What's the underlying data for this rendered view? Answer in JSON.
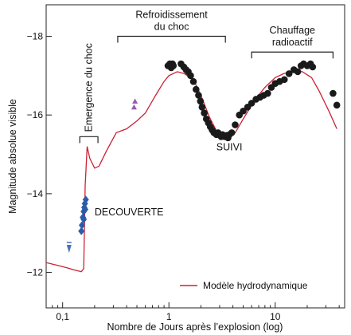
{
  "chart_data": {
    "type": "scatter",
    "xlabel": "Nombre de Jours après l’explosion (log)",
    "ylabel": "Magnitude absolue visible",
    "x_scale": "log",
    "xlim": [
      0.07,
      45
    ],
    "ylim": [
      -11.1,
      -18.8
    ],
    "y_inverted": true,
    "x_ticks": [
      {
        "value": 0.1,
        "label": "0,1"
      },
      {
        "value": 1,
        "label": "1"
      },
      {
        "value": 10,
        "label": "10"
      }
    ],
    "y_ticks": [
      {
        "value": -12,
        "label": "−12"
      },
      {
        "value": -14,
        "label": "−14"
      },
      {
        "value": -16,
        "label": "−16"
      },
      {
        "value": -18,
        "label": "−18"
      }
    ],
    "annotations": [
      {
        "text": "DECOUVERTE",
        "x": 0.2,
        "y": -13.45
      },
      {
        "text": "SUIVI",
        "x": 3.7,
        "y": -15.1
      }
    ],
    "phases": [
      {
        "lines": [
          "Emergence du choc"
        ],
        "x_start": 0.145,
        "x_end": 0.215,
        "y": -15.45
      },
      {
        "lines": [
          "Refroidissement",
          "du choc"
        ],
        "x_start": 0.33,
        "x_end": 3.4,
        "y": -18.0
      },
      {
        "lines": [
          "Chauffage",
          "radioactif"
        ],
        "x_start": 6.0,
        "x_end": 35.0,
        "y": -17.6
      }
    ],
    "legend": {
      "position": "bottom-right",
      "label": "Modèle hydrodynamique",
      "color": "#cc2233"
    },
    "colors": {
      "model": "#cc2233",
      "discovery": "#2a5caa",
      "followup": "#1a1a1a",
      "triangles": "#9b59b6",
      "limit": "#4a6fb5"
    },
    "series": [
      {
        "kind": "line",
        "name": "Modèle hydrodynamique",
        "points": [
          [
            0.07,
            -12.25
          ],
          [
            0.09,
            -12.18
          ],
          [
            0.11,
            -12.12
          ],
          [
            0.13,
            -12.06
          ],
          [
            0.15,
            -12.02
          ],
          [
            0.158,
            -12.1
          ],
          [
            0.163,
            -14.2
          ],
          [
            0.17,
            -15.2
          ],
          [
            0.18,
            -14.9
          ],
          [
            0.2,
            -14.65
          ],
          [
            0.22,
            -14.7
          ],
          [
            0.26,
            -15.1
          ],
          [
            0.32,
            -15.55
          ],
          [
            0.4,
            -15.65
          ],
          [
            0.5,
            -15.85
          ],
          [
            0.6,
            -16.05
          ],
          [
            0.75,
            -16.5
          ],
          [
            0.9,
            -16.85
          ],
          [
            1.0,
            -17.0
          ],
          [
            1.2,
            -17.1
          ],
          [
            1.4,
            -17.05
          ],
          [
            1.7,
            -16.9
          ],
          [
            2.0,
            -16.5
          ],
          [
            2.4,
            -15.95
          ],
          [
            2.8,
            -15.6
          ],
          [
            3.2,
            -15.45
          ],
          [
            3.6,
            -15.42
          ],
          [
            4.2,
            -15.55
          ],
          [
            5.0,
            -15.9
          ],
          [
            6.5,
            -16.4
          ],
          [
            8.0,
            -16.7
          ],
          [
            10.0,
            -16.95
          ],
          [
            12.0,
            -17.05
          ],
          [
            15.0,
            -17.12
          ],
          [
            18.0,
            -17.1
          ],
          [
            22.0,
            -16.95
          ],
          [
            26.0,
            -16.6
          ],
          [
            32.0,
            -16.1
          ],
          [
            38.0,
            -15.65
          ]
        ]
      },
      {
        "kind": "markers",
        "name": "",
        "marker": "diamond",
        "points": [
          [
            0.15,
            -13.05
          ],
          [
            0.152,
            -13.2
          ],
          [
            0.155,
            -13.4
          ],
          [
            0.158,
            -13.55
          ],
          [
            0.16,
            -13.65
          ],
          [
            0.162,
            -13.75
          ],
          [
            0.165,
            -13.85
          ],
          [
            0.163,
            -13.6
          ],
          [
            0.158,
            -13.35
          ]
        ]
      },
      {
        "kind": "markers",
        "name": "",
        "marker": "triangle",
        "points": [
          [
            0.47,
            -16.2
          ],
          [
            0.48,
            -16.35
          ]
        ]
      },
      {
        "kind": "markers",
        "name": "",
        "marker": "limit",
        "points": [
          [
            0.115,
            -12.6
          ]
        ]
      },
      {
        "kind": "markers",
        "name": "",
        "marker": "circle",
        "points": [
          [
            0.98,
            -17.25
          ],
          [
            1.02,
            -17.3
          ],
          [
            1.05,
            -17.2
          ],
          [
            1.08,
            -17.3
          ],
          [
            1.1,
            -17.25
          ],
          [
            1.3,
            -17.3
          ],
          [
            1.38,
            -17.22
          ],
          [
            1.45,
            -17.15
          ],
          [
            1.52,
            -17.1
          ],
          [
            1.6,
            -17.0
          ],
          [
            1.7,
            -16.85
          ],
          [
            1.8,
            -16.65
          ],
          [
            1.9,
            -16.5
          ],
          [
            1.98,
            -16.35
          ],
          [
            2.05,
            -16.2
          ],
          [
            2.15,
            -16.05
          ],
          [
            2.25,
            -15.9
          ],
          [
            2.35,
            -15.8
          ],
          [
            2.45,
            -15.7
          ],
          [
            2.55,
            -15.62
          ],
          [
            2.65,
            -15.55
          ],
          [
            2.8,
            -15.5
          ],
          [
            2.9,
            -15.55
          ],
          [
            3.0,
            -15.5
          ],
          [
            3.1,
            -15.45
          ],
          [
            3.2,
            -15.5
          ],
          [
            3.35,
            -15.45
          ],
          [
            3.5,
            -15.48
          ],
          [
            3.6,
            -15.42
          ],
          [
            3.7,
            -15.5
          ],
          [
            3.9,
            -15.55
          ],
          [
            4.2,
            -15.75
          ],
          [
            4.6,
            -16.0
          ],
          [
            5.0,
            -16.1
          ],
          [
            5.5,
            -16.2
          ],
          [
            6.0,
            -16.3
          ],
          [
            6.6,
            -16.4
          ],
          [
            7.2,
            -16.45
          ],
          [
            7.8,
            -16.5
          ],
          [
            8.5,
            -16.55
          ],
          [
            9.2,
            -16.7
          ],
          [
            10.0,
            -16.8
          ],
          [
            11.0,
            -16.85
          ],
          [
            12.2,
            -16.9
          ],
          [
            13.5,
            -17.05
          ],
          [
            15.0,
            -17.15
          ],
          [
            16.3,
            -17.1
          ],
          [
            17.5,
            -17.25
          ],
          [
            18.5,
            -17.3
          ],
          [
            20.0,
            -17.25
          ],
          [
            21.5,
            -17.3
          ],
          [
            22.5,
            -17.22
          ],
          [
            35.0,
            -16.55
          ],
          [
            38.0,
            -16.25
          ]
        ]
      }
    ]
  }
}
